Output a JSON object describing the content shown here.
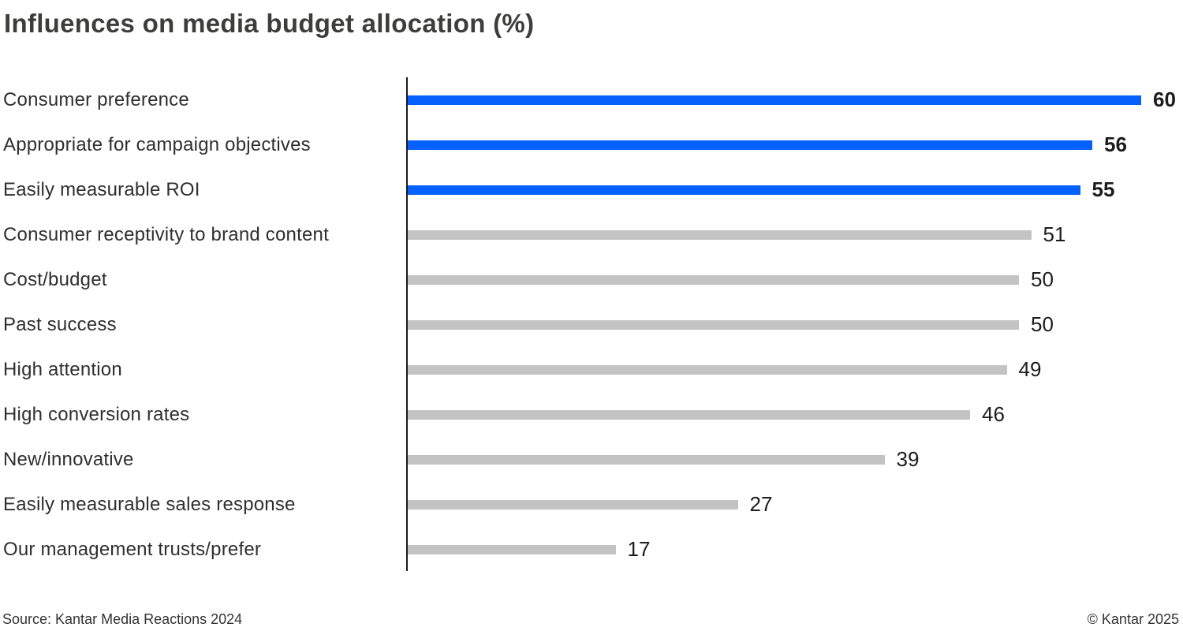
{
  "title": "Influences on media budget allocation (%)",
  "footer": {
    "source": "Source: Kantar Media Reactions 2024",
    "copyright": "© Kantar 2025"
  },
  "colors": {
    "highlight_bar": "#0561fb",
    "default_bar": "#c3c3c3",
    "axis": "#1b1b1b",
    "title_text": "#3d3d3c",
    "label_text": "#2f2f2f",
    "value_text": "#1c1c1c"
  },
  "chart_data": {
    "type": "bar",
    "orientation": "horizontal",
    "title": "Influences on media budget allocation (%)",
    "unit": "%",
    "xlim": [
      0,
      62
    ],
    "grid": false,
    "legend": false,
    "categories": [
      "Consumer preference",
      "Appropriate for campaign objectives",
      "Easily measurable ROI",
      "Consumer receptivity to brand content",
      "Cost/budget",
      "Past success",
      "High attention",
      "High conversion rates",
      "New/innovative",
      "Easily measurable sales response",
      "Our management trusts/prefer"
    ],
    "values": [
      60,
      56,
      55,
      51,
      50,
      50,
      49,
      46,
      39,
      27,
      17
    ],
    "highlighted": [
      true,
      true,
      true,
      false,
      false,
      false,
      false,
      false,
      false,
      false,
      false
    ]
  }
}
